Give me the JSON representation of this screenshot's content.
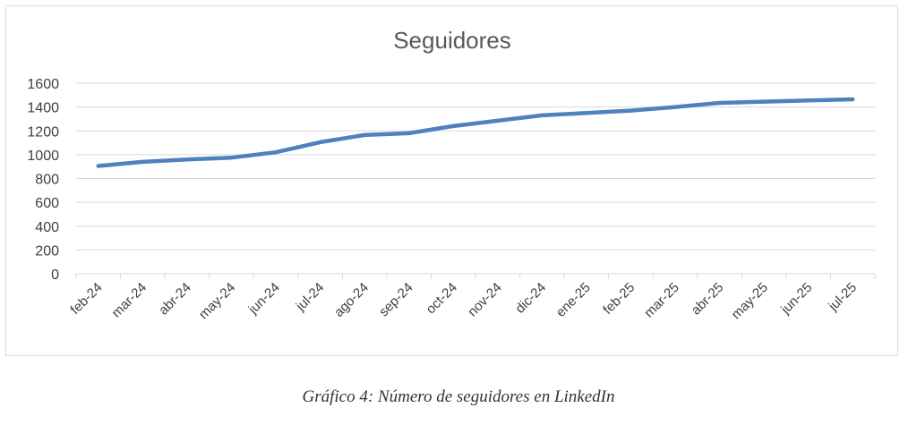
{
  "chart_data": {
    "type": "line",
    "title": "Seguidores",
    "xlabel": "",
    "ylabel": "",
    "ylim": [
      0,
      1600
    ],
    "yticks": [
      0,
      200,
      400,
      600,
      800,
      1000,
      1200,
      1400,
      1600
    ],
    "grid": true,
    "legend": "none",
    "categories": [
      "feb-24",
      "mar-24",
      "abr-24",
      "may-24",
      "jun-24",
      "jul-24",
      "ago-24",
      "sep-24",
      "oct-24",
      "nov-24",
      "dic-24",
      "ene-25",
      "feb-25",
      "mar-25",
      "abr-25",
      "may-25",
      "jun-25",
      "jul-25"
    ],
    "series": [
      {
        "color": "#4f81bd",
        "values": [
          905,
          940,
          960,
          975,
          1020,
          1105,
          1165,
          1180,
          1240,
          1285,
          1330,
          1350,
          1370,
          1400,
          1435,
          1445,
          1455,
          1465
        ]
      }
    ]
  },
  "caption": "Gráfico 4: Número de seguidores en LinkedIn",
  "colors": {
    "line": "#4f81bd",
    "grid": "#d9d9d9",
    "text": "#404040",
    "title": "#595959"
  }
}
